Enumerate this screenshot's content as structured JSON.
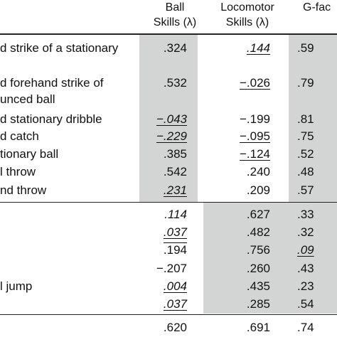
{
  "columns": [
    {
      "line1": "Ball",
      "line2": "Skills (λ)"
    },
    {
      "line1": "Locomotor",
      "line2": "Skills (λ)"
    },
    {
      "line1": "",
      "line2": "G-fac"
    }
  ],
  "rows": [
    {
      "label": "d strike of a stationary",
      "c1": ".324",
      "c2": ".144",
      "c3": ".59"
    },
    {
      "label": "d forehand strike of",
      "c1": ".532",
      "c2": "−.026",
      "c3": ".79"
    },
    {
      "label": "unced ball"
    },
    {
      "label": "d stationary dribble",
      "c1": "−.043",
      "c2": "−.199",
      "c3": ".81"
    },
    {
      "label": "d catch",
      "c1": "−.229",
      "c2": "−.095",
      "c3": ".75"
    },
    {
      "label": "tionary ball",
      "c1": ".385",
      "c2": "−.124",
      "c3": ".52"
    },
    {
      "label": "l throw",
      "c1": ".542",
      "c2": ".240",
      "c3": ".48"
    },
    {
      "label": "nd throw",
      "c1": ".231",
      "c2": ".209",
      "c3": ".57"
    },
    {
      "label": "",
      "c1": ".114",
      "c2": ".627",
      "c3": ".33"
    },
    {
      "label": "",
      "c1": ".037",
      "c2": ".482",
      "c3": ".32"
    },
    {
      "label": "",
      "c1": ".194",
      "c2": ".756",
      "c3": ".09"
    },
    {
      "label": "",
      "c1": "−.207",
      "c2": ".260",
      "c3": ".43"
    },
    {
      "label": "l jump",
      "c1": ".004",
      "c2": ".435",
      "c3": ".23"
    },
    {
      "label": "",
      "c1": ".037",
      "c2": ".285",
      "c3": ".54"
    },
    {
      "label": "",
      "c1": ".620",
      "c2": ".691",
      "c3": ".74"
    }
  ]
}
